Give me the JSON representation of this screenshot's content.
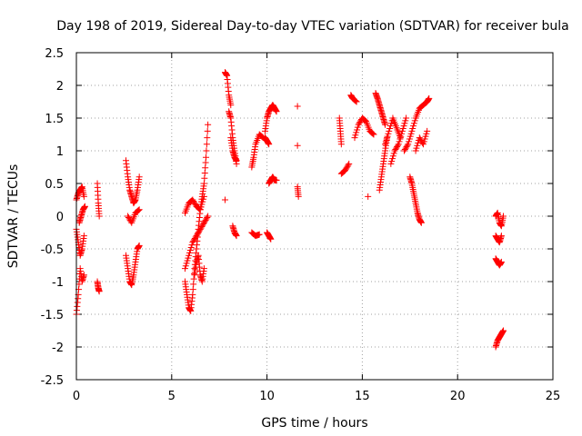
{
  "chart_data": {
    "type": "scatter",
    "title": "Day 198 of 2019, Sidereal Day-to-day VTEC variation (SDTVAR) for receiver bula",
    "xlabel": "GPS time / hours",
    "ylabel": "SDTVAR / TECUs",
    "xlim": [
      0,
      25
    ],
    "ylim": [
      -2.5,
      2.5
    ],
    "xticks": [
      "0",
      "5",
      "10",
      "15",
      "20",
      "25"
    ],
    "yticks": [
      "2.5",
      "2",
      "1.5",
      "1",
      "0.5",
      "0",
      "-0.5",
      "-1",
      "-1.5",
      "-2",
      "-2.5"
    ],
    "grid": true,
    "marker": "+",
    "marker_color": "#ff0000",
    "series": [
      {
        "name": "",
        "segments": [
          {
            "x": [
              0.0,
              0.1,
              0.2,
              0.3,
              0.4
            ],
            "y": [
              -1.5,
              -1.2,
              -0.8,
              -1.0,
              -0.9
            ]
          },
          {
            "x": [
              0.0,
              0.1,
              0.2,
              0.3,
              0.4
            ],
            "y": [
              -0.2,
              -0.4,
              -0.6,
              -0.5,
              -0.3
            ]
          },
          {
            "x": [
              0.0,
              0.1,
              0.2,
              0.3,
              0.4
            ],
            "y": [
              0.25,
              0.35,
              0.4,
              0.45,
              0.3
            ]
          },
          {
            "x": [
              0.15,
              0.25,
              0.35,
              0.45
            ],
            "y": [
              -0.1,
              0.0,
              0.1,
              0.15
            ]
          },
          {
            "x": [
              1.1,
              1.15,
              1.2
            ],
            "y": [
              0.5,
              0.2,
              0.0
            ]
          },
          {
            "x": [
              1.1,
              1.15,
              1.2
            ],
            "y": [
              -1.0,
              -1.1,
              -1.15
            ]
          },
          {
            "x": [
              2.6,
              2.7,
              2.8,
              2.9,
              3.0,
              3.1,
              3.2,
              3.3
            ],
            "y": [
              0.85,
              0.6,
              0.4,
              0.3,
              0.2,
              0.25,
              0.4,
              0.6
            ]
          },
          {
            "x": [
              2.6,
              2.7,
              2.8,
              2.9,
              3.0,
              3.1,
              3.2,
              3.3
            ],
            "y": [
              -0.6,
              -0.8,
              -1.0,
              -1.05,
              -0.9,
              -0.7,
              -0.5,
              -0.45
            ]
          },
          {
            "x": [
              2.7,
              2.9,
              3.1,
              3.3
            ],
            "y": [
              0.0,
              -0.1,
              0.05,
              0.1
            ]
          },
          {
            "x": [
              5.7,
              5.8,
              5.9,
              6.0,
              6.1,
              6.2,
              6.3,
              6.4,
              6.5,
              6.6,
              6.7,
              6.8,
              6.9
            ],
            "y": [
              -1.0,
              -1.2,
              -1.4,
              -1.45,
              -1.2,
              -0.8,
              -0.5,
              -0.2,
              0.1,
              0.3,
              0.5,
              0.9,
              1.4
            ]
          },
          {
            "x": [
              5.7,
              5.9,
              6.1,
              6.3,
              6.5,
              6.7,
              6.9
            ],
            "y": [
              -0.8,
              -0.6,
              -0.4,
              -0.3,
              -0.2,
              -0.1,
              0.0
            ]
          },
          {
            "x": [
              5.7,
              5.9,
              6.1,
              6.3,
              6.5,
              6.7
            ],
            "y": [
              0.05,
              0.2,
              0.25,
              0.15,
              0.1,
              0.3
            ]
          },
          {
            "x": [
              6.2,
              6.3,
              6.4,
              6.5,
              6.6,
              6.7
            ],
            "y": [
              -0.9,
              -0.7,
              -0.6,
              -0.9,
              -1.0,
              -0.8
            ]
          },
          {
            "x": [
              7.8,
              7.9,
              8.0,
              8.1
            ],
            "y": [
              2.2,
              2.15,
              1.85,
              1.7
            ]
          },
          {
            "x": [
              7.8
            ],
            "y": [
              0.25
            ]
          },
          {
            "x": [
              8.0,
              8.1,
              8.2,
              8.3,
              8.4
            ],
            "y": [
              1.6,
              1.5,
              1.2,
              1.0,
              0.8
            ]
          },
          {
            "x": [
              8.1,
              8.2,
              8.3,
              8.4
            ],
            "y": [
              1.2,
              1.0,
              0.9,
              0.85
            ]
          },
          {
            "x": [
              8.2,
              8.3,
              8.4
            ],
            "y": [
              -0.15,
              -0.25,
              -0.3
            ]
          },
          {
            "x": [
              9.2,
              9.3,
              9.4,
              9.6,
              9.8
            ],
            "y": [
              0.75,
              0.9,
              1.1,
              1.25,
              1.2
            ]
          },
          {
            "x": [
              9.2,
              9.4,
              9.6
            ],
            "y": [
              -0.25,
              -0.3,
              -0.28
            ]
          },
          {
            "x": [
              9.9,
              10.0,
              10.1,
              10.2,
              10.3,
              10.4,
              10.5
            ],
            "y": [
              1.3,
              1.5,
              1.6,
              1.65,
              1.7,
              1.65,
              1.6
            ]
          },
          {
            "x": [
              9.9,
              10.0,
              10.1
            ],
            "y": [
              1.2,
              1.15,
              1.1
            ]
          },
          {
            "x": [
              10.1,
              10.2,
              10.3,
              10.4,
              10.5
            ],
            "y": [
              0.5,
              0.55,
              0.6,
              0.55,
              0.55
            ]
          },
          {
            "x": [
              10.0,
              10.1,
              10.2
            ],
            "y": [
              -0.25,
              -0.3,
              -0.35
            ]
          },
          {
            "x": [
              11.6
            ],
            "y": [
              1.68
            ]
          },
          {
            "x": [
              11.6
            ],
            "y": [
              1.08
            ]
          },
          {
            "x": [
              11.6,
              11.65
            ],
            "y": [
              0.45,
              0.3
            ]
          },
          {
            "x": [
              13.8,
              13.85,
              13.9
            ],
            "y": [
              1.5,
              1.3,
              1.1
            ]
          },
          {
            "x": [
              13.9,
              14.1,
              14.3
            ],
            "y": [
              0.65,
              0.7,
              0.8
            ]
          },
          {
            "x": [
              14.4,
              14.5,
              14.7
            ],
            "y": [
              1.85,
              1.8,
              1.75
            ]
          },
          {
            "x": [
              14.6,
              14.8,
              15.0,
              15.2,
              15.4,
              15.6
            ],
            "y": [
              1.2,
              1.4,
              1.5,
              1.45,
              1.3,
              1.25
            ]
          },
          {
            "x": [
              15.3
            ],
            "y": [
              0.3
            ]
          },
          {
            "x": [
              15.7,
              15.8,
              15.9,
              16.0,
              16.1,
              16.2
            ],
            "y": [
              1.88,
              1.8,
              1.7,
              1.6,
              1.5,
              1.4
            ]
          },
          {
            "x": [
              15.9,
              16.0,
              16.1,
              16.2,
              16.3
            ],
            "y": [
              0.4,
              0.6,
              0.8,
              1.0,
              1.2
            ]
          },
          {
            "x": [
              16.2,
              16.4,
              16.6,
              16.8,
              17.0
            ],
            "y": [
              1.1,
              1.3,
              1.5,
              1.35,
              1.2
            ]
          },
          {
            "x": [
              16.5,
              16.7,
              16.9,
              17.1,
              17.3
            ],
            "y": [
              0.8,
              1.0,
              1.1,
              1.3,
              1.5
            ]
          },
          {
            "x": [
              17.2,
              17.4,
              17.6,
              17.8,
              18.0,
              18.2,
              18.4,
              18.5
            ],
            "y": [
              1.0,
              1.1,
              1.3,
              1.5,
              1.65,
              1.7,
              1.75,
              1.8
            ]
          },
          {
            "x": [
              17.5,
              17.6,
              17.7,
              17.8,
              17.9,
              18.0,
              18.1
            ],
            "y": [
              0.6,
              0.5,
              0.35,
              0.2,
              0.05,
              -0.05,
              -0.1
            ]
          },
          {
            "x": [
              17.8,
              18.0,
              18.2,
              18.4
            ],
            "y": [
              1.0,
              1.2,
              1.1,
              1.3
            ]
          },
          {
            "x": [
              22.0,
              22.1,
              22.2,
              22.3,
              22.4
            ],
            "y": [
              0.0,
              0.05,
              -0.1,
              -0.15,
              0.0
            ]
          },
          {
            "x": [
              22.0,
              22.1,
              22.2,
              22.3
            ],
            "y": [
              -0.3,
              -0.35,
              -0.4,
              -0.3
            ]
          },
          {
            "x": [
              22.0,
              22.1,
              22.2,
              22.3
            ],
            "y": [
              -0.65,
              -0.7,
              -0.75,
              -0.7
            ]
          },
          {
            "x": [
              22.0,
              22.1,
              22.2,
              22.3,
              22.4
            ],
            "y": [
              -2.0,
              -1.9,
              -1.85,
              -1.8,
              -1.75
            ]
          }
        ]
      }
    ]
  }
}
